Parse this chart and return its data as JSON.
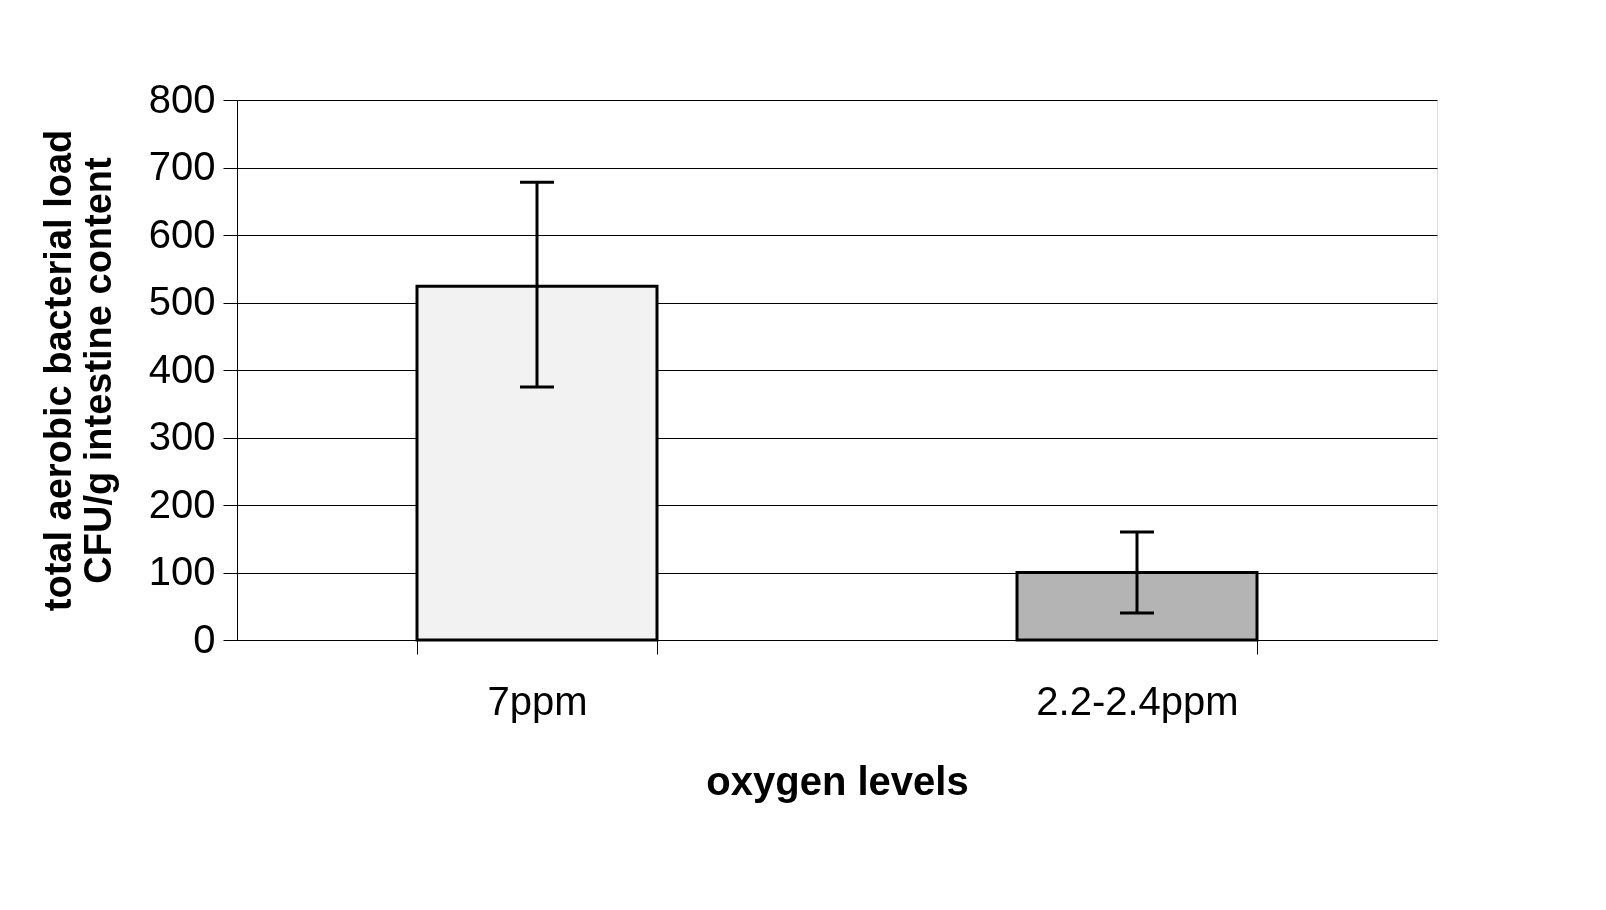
{
  "chart_data": {
    "type": "bar",
    "xlabel": "oxygen levels",
    "ylabel": "total aerobic bacterial load\nCFU/g intestine content",
    "categories": [
      "7ppm",
      "2.2-2.4ppm"
    ],
    "values": [
      524,
      100
    ],
    "colors": [
      "#f2f2f2",
      "#b4b4b4"
    ],
    "errors": [
      [
        375,
        678
      ],
      [
        40,
        160
      ]
    ],
    "ylim": [
      0,
      800
    ],
    "yticks": [
      0,
      100,
      200,
      300,
      400,
      500,
      600,
      700,
      800
    ],
    "grid": "y",
    "legend": false
  }
}
